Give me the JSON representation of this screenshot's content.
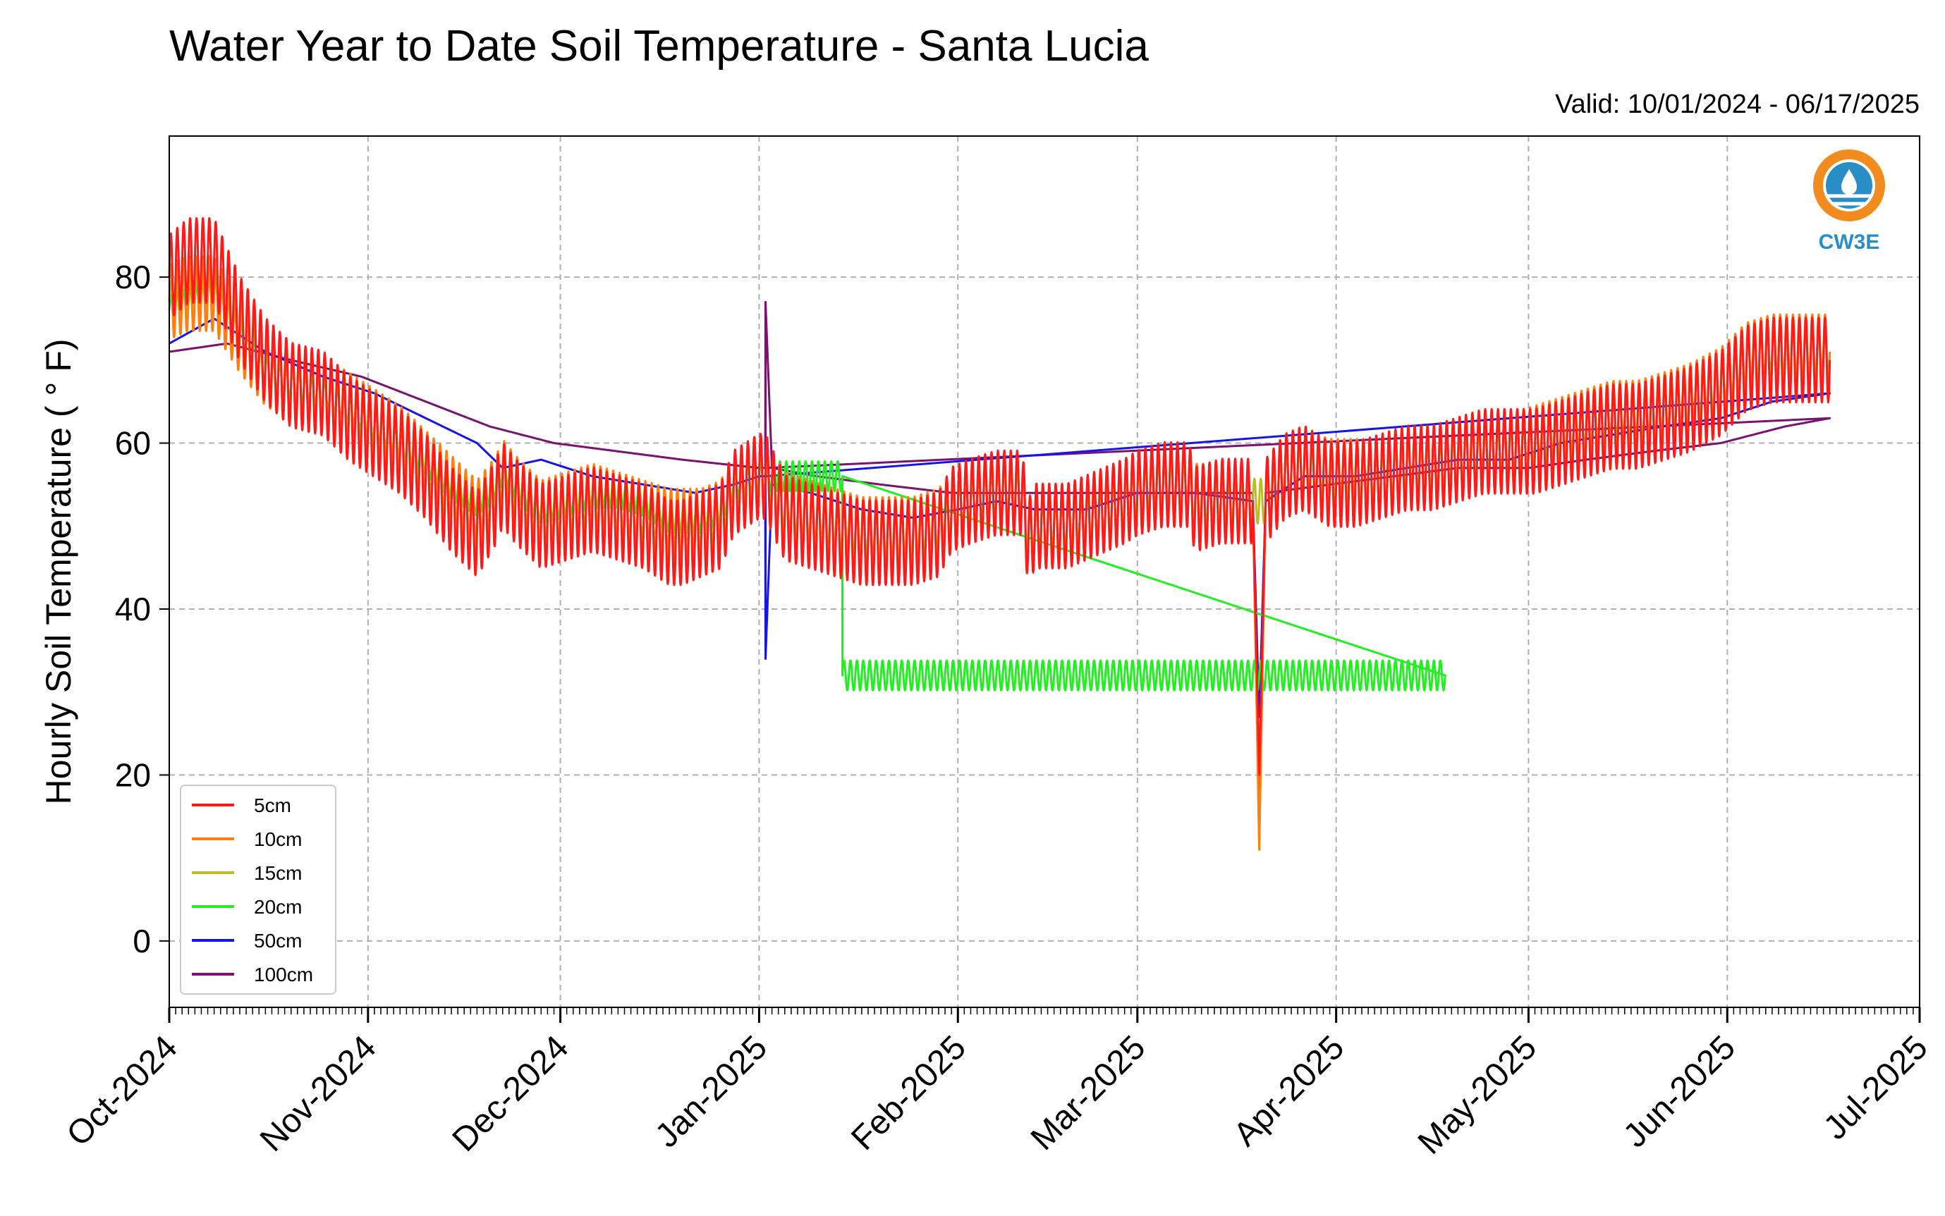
{
  "chart_data": {
    "type": "line",
    "title": "Water Year to Date Soil Temperature - Santa Lucia",
    "subtitle": "Valid: 10/01/2024 - 06/17/2025",
    "xlabel": "",
    "ylabel": "Hourly Soil Temperature ( ° F)",
    "xlim": [
      "2024-10-01",
      "2025-07-01"
    ],
    "ylim": [
      -8,
      97
    ],
    "x_ticks": [
      "Oct-2024",
      "Nov-2024",
      "Dec-2024",
      "Jan-2025",
      "Feb-2025",
      "Mar-2025",
      "Apr-2025",
      "May-2025",
      "Jun-2025",
      "Jul-2025"
    ],
    "y_ticks": [
      0,
      20,
      40,
      60,
      80
    ],
    "grid": true,
    "legend_position": "lower-left",
    "series": [
      {
        "name": "5cm",
        "color": "#ff1a1a",
        "amp": 0.85,
        "x": [
          "2024-10-01",
          "2024-10-04",
          "2024-10-08",
          "2024-10-12",
          "2024-10-16",
          "2024-10-20",
          "2024-10-25",
          "2024-10-29",
          "2024-11-02",
          "2024-11-06",
          "2024-11-10",
          "2024-11-14",
          "2024-11-18",
          "2024-11-21",
          "2024-11-22",
          "2024-11-24",
          "2024-11-28",
          "2024-12-02",
          "2024-12-06",
          "2024-12-10",
          "2024-12-14",
          "2024-12-18",
          "2024-12-20",
          "2024-12-23",
          "2024-12-26",
          "2024-12-28",
          "2025-01-01",
          "2025-01-02",
          "2025-01-05",
          "2025-01-09",
          "2025-01-13",
          "2025-01-17",
          "2025-01-21",
          "2025-01-25",
          "2025-01-29",
          "2025-01-31",
          "2025-02-03",
          "2025-02-07",
          "2025-02-11",
          "2025-02-12",
          "2025-02-13",
          "2025-02-18",
          "2025-02-21",
          "2025-02-24",
          "2025-02-27",
          "2025-03-01",
          "2025-03-05",
          "2025-03-09",
          "2025-03-10",
          "2025-03-14",
          "2025-03-18",
          "2025-03-19",
          "2025-03-20",
          "2025-03-21",
          "2025-03-24",
          "2025-03-27",
          "2025-03-31",
          "2025-04-04",
          "2025-04-08",
          "2025-04-12",
          "2025-04-16",
          "2025-04-20",
          "2025-04-24",
          "2025-04-28",
          "2025-05-02",
          "2025-05-06",
          "2025-05-10",
          "2025-05-14",
          "2025-05-18",
          "2025-05-22",
          "2025-05-26",
          "2025-05-31",
          "2025-06-04",
          "2025-06-08",
          "2025-06-12",
          "2025-06-17"
        ],
        "y": [
          80,
          82,
          82,
          75,
          70,
          67,
          66,
          63,
          61,
          59,
          56,
          52,
          49,
          53,
          55,
          53,
          50,
          51,
          52,
          51,
          50,
          48,
          48,
          49,
          50,
          54,
          56,
          56,
          51,
          50,
          49,
          48,
          48,
          48,
          49,
          52,
          53,
          54,
          54,
          48,
          50,
          50,
          51,
          52,
          53,
          54,
          55,
          55,
          52,
          53,
          53,
          53,
          20,
          53,
          56,
          57,
          55,
          55,
          56,
          57,
          57,
          58,
          59,
          59,
          59,
          60,
          61,
          62,
          62,
          63,
          64,
          66,
          69,
          70,
          70,
          70
        ]
      },
      {
        "name": "10cm",
        "color": "#ff7f0e",
        "amp": 0.75,
        "x": [
          "2024-10-01",
          "2024-10-04",
          "2024-10-08",
          "2024-10-12",
          "2024-10-16",
          "2024-10-20",
          "2024-10-25",
          "2024-10-29",
          "2024-11-02",
          "2024-11-06",
          "2024-11-10",
          "2024-11-14",
          "2024-11-18",
          "2024-11-21",
          "2024-11-22",
          "2024-11-24",
          "2024-11-28",
          "2024-12-02",
          "2024-12-06",
          "2024-12-10",
          "2024-12-14",
          "2024-12-18",
          "2024-12-20",
          "2024-12-23",
          "2024-12-26",
          "2024-12-28",
          "2025-01-01",
          "2025-01-02",
          "2025-01-05",
          "2025-01-09",
          "2025-01-13",
          "2025-01-17",
          "2025-01-21",
          "2025-01-25",
          "2025-01-29",
          "2025-01-31",
          "2025-02-03",
          "2025-02-07",
          "2025-02-11",
          "2025-02-12",
          "2025-02-13",
          "2025-02-18",
          "2025-02-21",
          "2025-02-24",
          "2025-02-27",
          "2025-03-01",
          "2025-03-05",
          "2025-03-09",
          "2025-03-10",
          "2025-03-14",
          "2025-03-18",
          "2025-03-19",
          "2025-03-20",
          "2025-03-21",
          "2025-03-24",
          "2025-03-27",
          "2025-03-31",
          "2025-04-04",
          "2025-04-08",
          "2025-04-12",
          "2025-04-16",
          "2025-04-20",
          "2025-04-24",
          "2025-04-28",
          "2025-05-02",
          "2025-05-06",
          "2025-05-10",
          "2025-05-14",
          "2025-05-18",
          "2025-05-22",
          "2025-05-26",
          "2025-05-31",
          "2025-06-04",
          "2025-06-08",
          "2025-06-12",
          "2025-06-17"
        ],
        "y": [
          77,
          78,
          78,
          73,
          69,
          67,
          66,
          64,
          62,
          60,
          57,
          54,
          51,
          54,
          56,
          54,
          51,
          52,
          53,
          52,
          51,
          50,
          50,
          50,
          51,
          54,
          56,
          56,
          52,
          51,
          50,
          49,
          49,
          49,
          50,
          52,
          53,
          54,
          54,
          49,
          50,
          50,
          51,
          52,
          53,
          54,
          55,
          55,
          53,
          53,
          53,
          53,
          11,
          53,
          56,
          57,
          56,
          56,
          56,
          57,
          57,
          58,
          59,
          59,
          60,
          61,
          62,
          63,
          63,
          64,
          65,
          67,
          70,
          71,
          71,
          71
        ]
      },
      {
        "name": "15cm",
        "color": "#bcbd22",
        "amp": 0.45,
        "x": [
          "2024-10-01",
          "2024-10-04",
          "2024-10-08",
          "2024-10-12",
          "2024-10-16",
          "2024-10-20",
          "2024-10-25",
          "2024-10-29",
          "2024-11-02",
          "2024-11-06",
          "2024-11-10",
          "2024-11-14",
          "2024-11-18",
          "2024-11-21",
          "2024-11-22",
          "2024-11-24",
          "2024-11-28",
          "2024-12-02",
          "2024-12-06",
          "2024-12-10",
          "2024-12-14",
          "2024-12-18",
          "2024-12-20",
          "2024-12-23",
          "2024-12-26",
          "2024-12-28",
          "2025-01-01",
          "2025-01-02",
          "2025-01-05",
          "2025-01-09",
          "2025-01-13",
          "2025-01-17",
          "2025-01-21",
          "2025-01-25",
          "2025-01-29",
          "2025-01-31",
          "2025-02-03",
          "2025-02-07",
          "2025-02-11",
          "2025-02-12",
          "2025-02-13",
          "2025-02-18",
          "2025-02-21",
          "2025-02-24",
          "2025-02-27",
          "2025-03-01",
          "2025-03-05",
          "2025-03-09",
          "2025-03-10",
          "2025-03-14",
          "2025-03-18",
          "2025-03-19",
          "2025-03-20",
          "2025-03-21",
          "2025-03-24",
          "2025-03-27",
          "2025-03-31",
          "2025-04-04",
          "2025-04-08",
          "2025-04-12",
          "2025-04-16",
          "2025-04-20",
          "2025-04-24",
          "2025-04-28",
          "2025-05-02",
          "2025-05-06",
          "2025-05-10",
          "2025-05-14",
          "2025-05-18",
          "2025-05-22",
          "2025-05-26",
          "2025-05-31",
          "2025-06-04",
          "2025-06-08",
          "2025-06-12",
          "2025-06-17"
        ],
        "y": [
          77,
          78,
          78,
          73,
          69,
          67,
          66,
          64,
          62,
          60,
          57,
          54,
          51,
          54,
          56,
          54,
          51,
          52,
          53,
          52,
          51,
          50,
          50,
          50,
          51,
          54,
          56,
          56,
          52,
          51,
          50,
          49,
          49,
          49,
          50,
          52,
          53,
          54,
          54,
          49,
          50,
          50,
          51,
          52,
          53,
          54,
          55,
          55,
          53,
          53,
          53,
          53,
          53,
          53,
          56,
          57,
          56,
          56,
          56,
          57,
          57,
          58,
          59,
          59,
          60,
          61,
          62,
          63,
          63,
          64,
          65,
          67,
          70,
          71,
          71,
          71
        ]
      },
      {
        "name": "20cm",
        "color": "#22ee22",
        "amp": 0.3,
        "x": [
          "2024-10-01",
          "2024-10-04",
          "2024-10-08",
          "2024-10-12",
          "2024-10-16",
          "2024-10-20",
          "2024-10-25",
          "2024-10-29",
          "2024-11-02",
          "2024-11-06",
          "2024-11-10",
          "2024-11-14",
          "2024-11-18",
          "2024-11-21",
          "2024-11-22",
          "2024-11-24",
          "2024-11-28",
          "2024-12-02",
          "2024-12-06",
          "2024-12-10",
          "2024-12-14",
          "2024-12-18",
          "2024-12-20",
          "2024-12-23",
          "2024-12-26",
          "2024-12-28",
          "2025-01-01",
          "2025-01-02",
          "2025-01-05",
          "2025-01-09",
          "2025-01-13",
          "2025-01-14",
          "2025-01-14",
          "2025-04-17",
          "2025-04-18"
        ],
        "y": [
          76,
          77,
          78,
          73,
          69,
          67,
          66,
          64,
          62,
          60,
          58,
          55,
          53,
          55,
          57,
          55,
          52,
          53,
          54,
          54,
          53,
          51,
          51,
          51,
          52,
          55,
          56,
          56,
          56,
          56,
          56,
          56,
          32,
          32,
          32
        ]
      },
      {
        "name": "50cm",
        "color": "#1515e8",
        "amp": 0.0,
        "x": [
          "2024-10-01",
          "2024-10-08",
          "2024-10-16",
          "2024-10-25",
          "2024-11-02",
          "2024-11-10",
          "2024-11-18",
          "2024-11-22",
          "2024-11-28",
          "2024-12-06",
          "2024-12-14",
          "2024-12-22",
          "2024-12-28",
          "2025-01-01",
          "2025-01-02",
          "2025-01-02",
          "2025-01-03",
          "2025-01-09",
          "2025-01-17",
          "2025-01-25",
          "2025-02-01",
          "2025-02-07",
          "2025-02-13",
          "2025-02-21",
          "2025-03-01",
          "2025-03-10",
          "2025-03-19",
          "2025-03-20",
          "2025-03-21",
          "2025-03-27",
          "2025-04-04",
          "2025-04-12",
          "2025-04-20",
          "2025-04-28",
          "2025-05-06",
          "2025-05-14",
          "2025-05-22",
          "2025-05-31",
          "2025-06-08",
          "2025-06-17"
        ],
        "y": [
          72,
          75,
          71,
          68,
          66,
          63,
          60,
          57,
          58,
          56,
          55,
          54,
          55,
          56,
          56,
          34,
          55,
          54,
          52,
          51,
          52,
          53,
          52,
          52,
          54,
          54,
          53,
          27,
          53,
          56,
          56,
          57,
          58,
          58,
          60,
          61,
          62,
          63,
          65,
          66
        ]
      },
      {
        "name": "100cm",
        "color": "#7a1270",
        "amp": 0.0,
        "x": [
          "2024-10-01",
          "2024-10-10",
          "2024-10-20",
          "2024-10-31",
          "2024-11-10",
          "2024-11-20",
          "2024-11-30",
          "2024-12-10",
          "2024-12-20",
          "2025-01-01",
          "2025-01-02",
          "2025-01-02",
          "2025-01-03",
          "2025-01-10",
          "2025-01-20",
          "2025-01-31",
          "2025-02-10",
          "2025-02-20",
          "2025-03-01",
          "2025-03-10",
          "2025-03-19",
          "2025-03-20",
          "2025-03-21",
          "2025-03-31",
          "2025-04-10",
          "2025-04-20",
          "2025-05-01",
          "2025-05-10",
          "2025-05-20",
          "2025-05-31",
          "2025-06-10",
          "2025-06-17"
        ],
        "y": [
          71,
          72,
          70,
          68,
          65,
          62,
          60,
          59,
          58,
          57,
          57,
          77,
          57,
          56,
          55,
          54,
          54,
          54,
          54,
          54,
          54,
          12,
          54,
          55,
          56,
          57,
          57,
          58,
          59,
          60,
          62,
          63
        ]
      }
    ]
  },
  "logo": {
    "text": "CW3E"
  }
}
